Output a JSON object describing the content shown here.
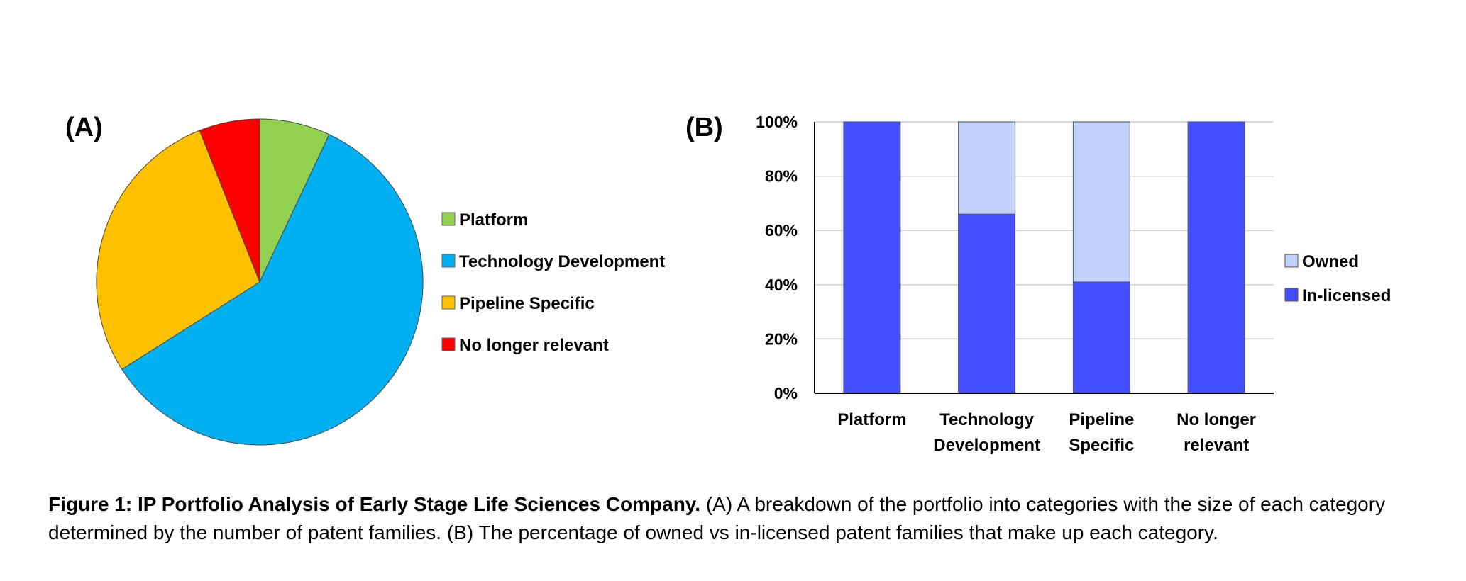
{
  "caption": {
    "label": "Figure 1: IP Portfolio Analysis of Early Stage Life Sciences Company.",
    "text": "(A) A breakdown of the portfolio into categories with the size of each category determined by the number of patent families. (B) The percentage of owned vs in-licensed patent families that make up each category."
  },
  "chart_data": [
    {
      "panel": "(A)",
      "type": "pie",
      "categories": [
        "Platform",
        "Technology Development",
        "Pipeline Specific",
        "No longer relevant"
      ],
      "values": [
        7,
        59,
        28,
        6
      ],
      "colors": [
        "#92d050",
        "#00b0f0",
        "#ffc000",
        "#ff0000"
      ],
      "legend": "right"
    },
    {
      "panel": "(B)",
      "type": "bar",
      "stacked": true,
      "categories": [
        [
          "Platform"
        ],
        [
          "Technology",
          "Development"
        ],
        [
          "Pipeline",
          "Specific"
        ],
        [
          "No longer",
          "relevant"
        ]
      ],
      "series": [
        {
          "name": "In-licensed",
          "values": [
            100,
            66,
            41,
            100
          ],
          "color": "#4350ff"
        },
        {
          "name": "Owned",
          "values": [
            0,
            34,
            59,
            0
          ],
          "color": "#c3cffc"
        }
      ],
      "legend_order": [
        "Owned",
        "In-licensed"
      ],
      "ylim": [
        0,
        100
      ],
      "yticks": [
        "0%",
        "20%",
        "40%",
        "60%",
        "80%",
        "100%"
      ],
      "grid": true,
      "legend": "right"
    }
  ]
}
